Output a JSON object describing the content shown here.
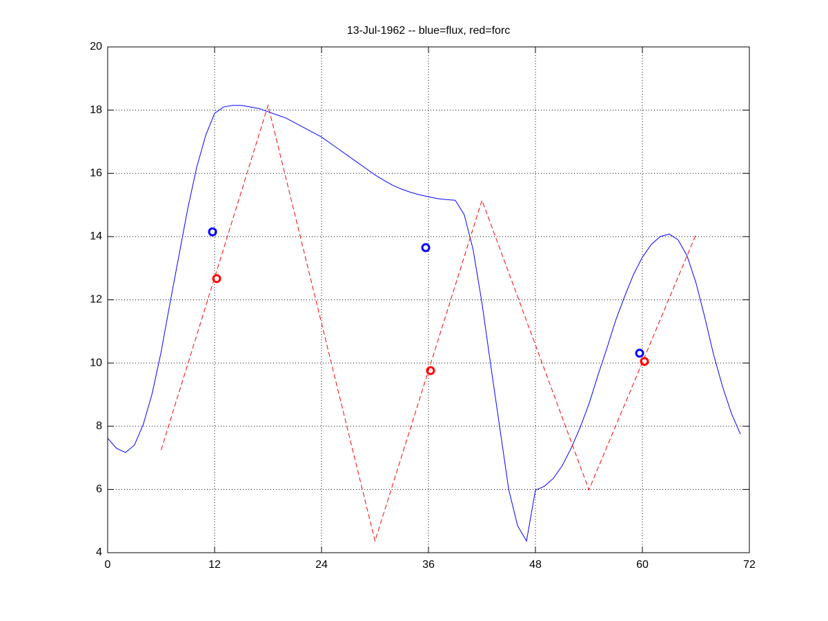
{
  "chart_data": {
    "type": "line",
    "title": "13-Jul-1962 -- blue=flux, red=forc",
    "xlim": [
      0,
      72
    ],
    "xticks": [
      0,
      12,
      24,
      36,
      48,
      60,
      72
    ],
    "ylim": [
      4,
      20
    ],
    "yticks": [
      4,
      6,
      8,
      10,
      12,
      14,
      16,
      18,
      20
    ],
    "grid": true,
    "series": [
      {
        "color": "#0000ff",
        "line_style": "solid",
        "x": [
          0,
          1,
          2,
          3,
          4,
          5,
          6,
          7,
          8,
          9,
          10,
          11,
          12,
          13,
          14,
          15,
          16,
          17,
          18,
          19,
          20,
          21,
          22,
          23,
          24,
          25,
          26,
          27,
          28,
          29,
          30,
          31,
          32,
          33,
          34,
          35,
          36,
          37,
          38,
          39,
          40,
          41,
          42,
          43,
          44,
          45,
          46,
          47,
          48,
          49,
          50,
          51,
          52,
          53,
          54,
          55,
          56,
          57,
          58,
          59,
          60,
          61,
          62,
          63,
          64,
          65,
          66,
          67,
          68,
          69,
          70,
          71
        ],
        "values": [
          7.62,
          7.3,
          7.17,
          7.4,
          8.06,
          9.04,
          10.35,
          11.9,
          13.4,
          14.9,
          16.2,
          17.2,
          17.9,
          18.1,
          18.15,
          18.15,
          18.1,
          18.05,
          17.95,
          17.85,
          17.75,
          17.6,
          17.45,
          17.3,
          17.15,
          16.95,
          16.75,
          16.55,
          16.35,
          16.15,
          15.95,
          15.78,
          15.62,
          15.5,
          15.4,
          15.32,
          15.26,
          15.2,
          15.17,
          15.15,
          14.7,
          13.6,
          11.9,
          9.9,
          7.95,
          6.0,
          4.85,
          4.37,
          5.98,
          6.1,
          6.35,
          6.75,
          7.3,
          7.95,
          8.7,
          9.6,
          10.45,
          11.35,
          12.1,
          12.8,
          13.35,
          13.75,
          14.0,
          14.08,
          13.9,
          13.4,
          12.55,
          11.45,
          10.25,
          9.25,
          8.4,
          7.75
        ]
      },
      {
        "color": "#ff0000",
        "line_style": "dashed",
        "x": [
          6,
          18,
          30,
          42,
          54,
          66
        ],
        "values": [
          7.25,
          18.15,
          4.37,
          15.15,
          5.99,
          14.06
        ]
      },
      {
        "color": "#0000ff",
        "line_style": "none",
        "marker": "circle",
        "x": [
          11.77,
          35.69,
          59.69
        ],
        "values": [
          14.15,
          13.65,
          10.31
        ]
      },
      {
        "color": "#ff0000",
        "line_style": "none",
        "marker": "circle",
        "x": [
          12.23,
          36.23,
          60.23
        ],
        "values": [
          12.67,
          9.76,
          10.05
        ]
      }
    ]
  }
}
